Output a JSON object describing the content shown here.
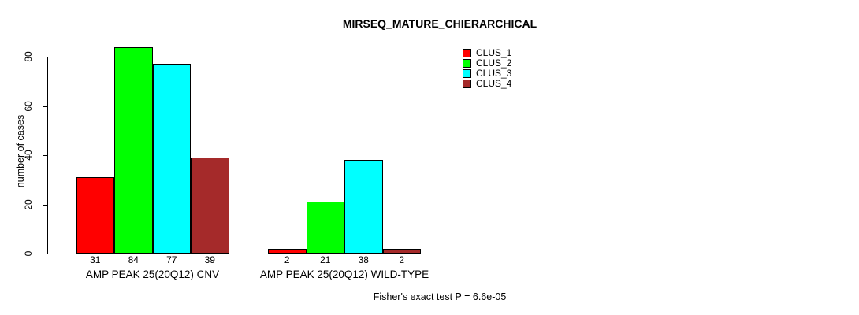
{
  "title": "MIRSEQ_MATURE_CHIERARCHICAL",
  "footer": "Fisher's exact test P = 6.6e-05",
  "chart_data": {
    "type": "bar",
    "title": "MIRSEQ_MATURE_CHIERARCHICAL",
    "ylabel": "number of cases",
    "xlabel": "",
    "ylim": [
      0,
      80
    ],
    "yticks": [
      0,
      20,
      40,
      60,
      80
    ],
    "grid": false,
    "legend_position": "top-right",
    "series": [
      "CLUS_1",
      "CLUS_2",
      "CLUS_3",
      "CLUS_4"
    ],
    "colors": [
      "#ff0000",
      "#00ff00",
      "#00ffff",
      "#a52a2a"
    ],
    "groups": [
      {
        "label": "AMP PEAK 25(20Q12) CNV",
        "values": [
          31,
          84,
          77,
          39
        ]
      },
      {
        "label": "AMP PEAK 25(20Q12) WILD-TYPE",
        "values": [
          2,
          21,
          38,
          2
        ]
      }
    ],
    "bar_value_labels_shown": true,
    "annotation": "Fisher's exact test P = 6.6e-05"
  }
}
